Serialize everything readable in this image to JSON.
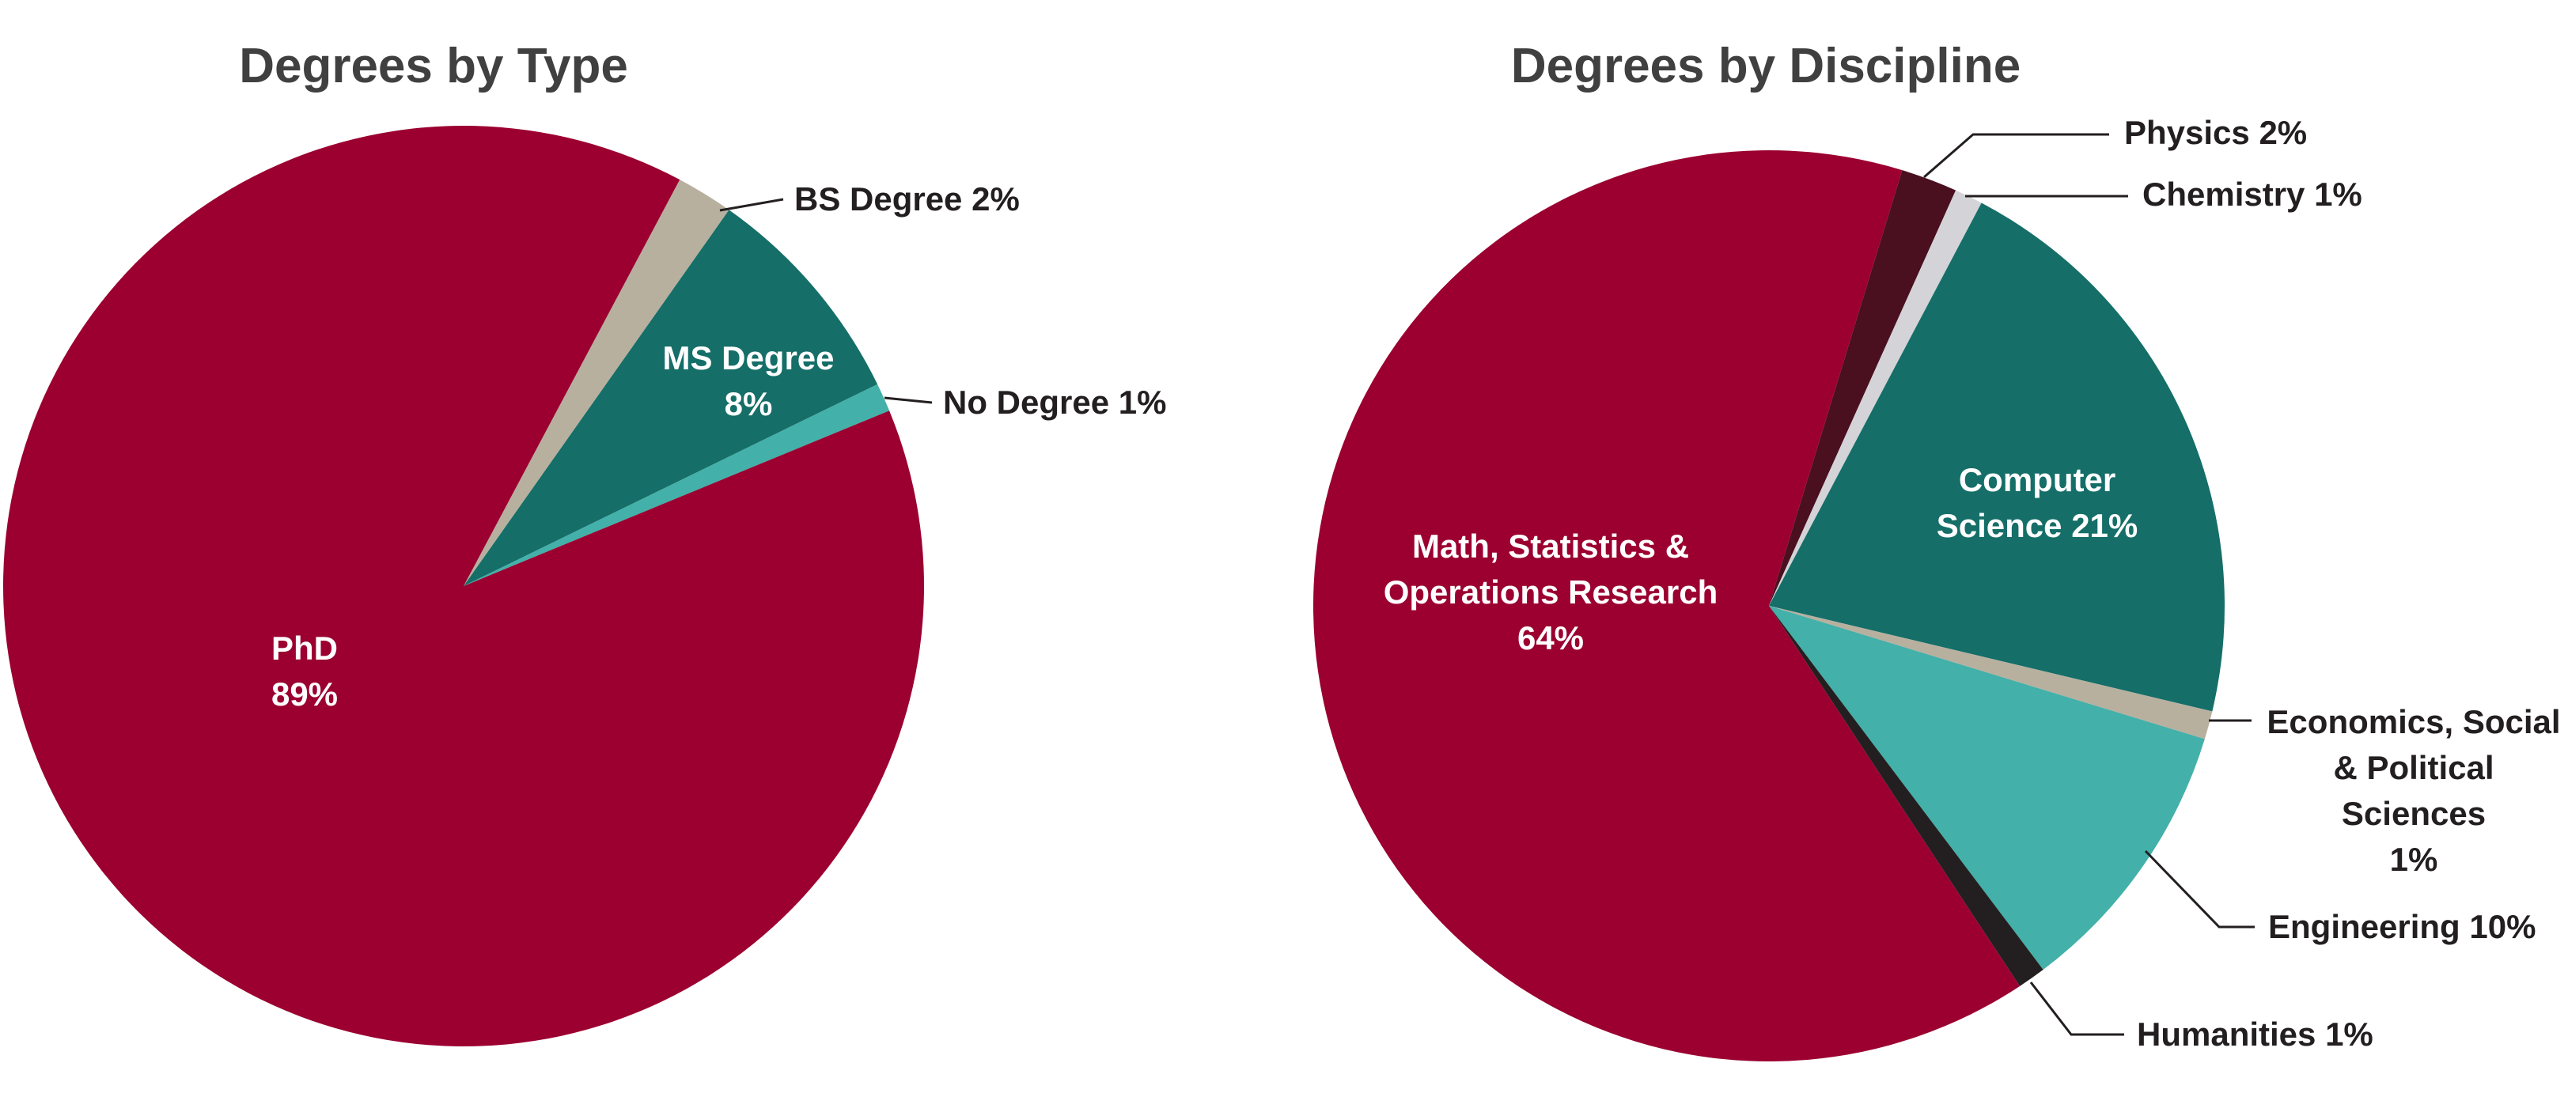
{
  "chart_data": [
    {
      "type": "pie",
      "title": "Degrees by Type",
      "categories": [
        "BS Degree",
        "MS Degree",
        "No Degree",
        "PhD"
      ],
      "values": [
        2,
        8,
        1,
        89
      ],
      "value_labels": [
        "2%",
        "8%",
        "1%",
        "89%"
      ],
      "colors": [
        "#b8b09f",
        "#156e68",
        "#43b0a9",
        "#9b0030"
      ]
    },
    {
      "type": "pie",
      "title": "Degrees by Discipline",
      "categories": [
        "Physics",
        "Chemistry",
        "Computer Science",
        "Economics, Social & Political Sciences",
        "Engineering",
        "Humanities",
        "Math, Statistics & Operations Research"
      ],
      "values": [
        2,
        1,
        21,
        1,
        10,
        1,
        64
      ],
      "value_labels": [
        "2%",
        "1%",
        "21%",
        "1%",
        "10%",
        "1%",
        "64%"
      ],
      "colors": [
        "#4a1020",
        "#d4d4d8",
        "#156e68",
        "#b8b09f",
        "#43b0a9",
        "#231f20",
        "#9b0030"
      ]
    }
  ]
}
